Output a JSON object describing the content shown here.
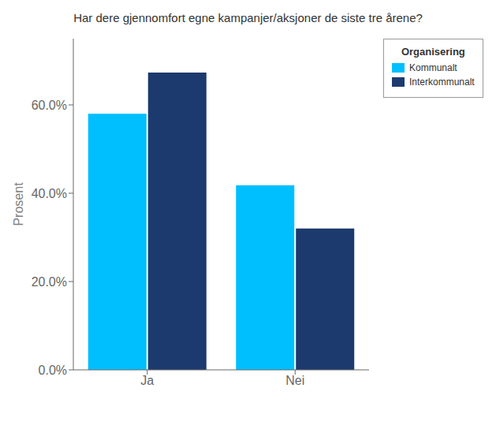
{
  "chart_data": {
    "type": "bar",
    "title": "Har dere gjennomfort egne kampanjer/aksjoner de siste tre årene?",
    "ylabel": "Prosent",
    "categories": [
      "Ja",
      "Nei"
    ],
    "series": [
      {
        "name": "Kommunalt",
        "color": "#00BFFF",
        "values": [
          58.0,
          41.8
        ]
      },
      {
        "name": "Interkommunalt",
        "color": "#1C3A6E",
        "values": [
          67.3,
          32.0
        ]
      }
    ],
    "ylim": [
      0,
      75
    ],
    "yticks": [
      {
        "value": 0,
        "label": "0.0%"
      },
      {
        "value": 20,
        "label": "20.0%"
      },
      {
        "value": 40,
        "label": "40.0%"
      },
      {
        "value": 60,
        "label": "60.0%"
      }
    ],
    "legend_title": "Organisering",
    "legend": "right",
    "grid": false
  }
}
